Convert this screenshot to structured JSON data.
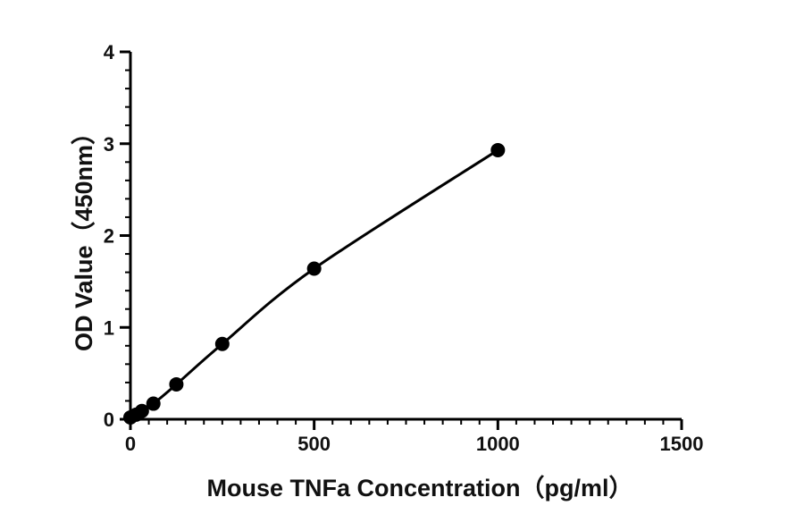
{
  "chart_data": {
    "type": "scatter",
    "xlabel": "Mouse TNFa  Concentration（pg/ml）",
    "ylabel": "OD Value（450nm）",
    "xlim": [
      0,
      1500
    ],
    "ylim": [
      0,
      4
    ],
    "x_ticks": [
      0,
      500,
      1000,
      1500
    ],
    "y_ticks": [
      0,
      1,
      2,
      3,
      4
    ],
    "x_minor_step": 50,
    "y_minor_step": 0.2,
    "grid": false,
    "legend": "none",
    "series": [
      {
        "x": [
          0,
          15.6,
          31.25,
          62.5,
          125,
          250,
          500,
          1000
        ],
        "y": [
          0.02,
          0.05,
          0.09,
          0.17,
          0.38,
          0.82,
          1.64,
          2.93
        ],
        "marker": "circle",
        "line": "fitted-curve",
        "color": "#000000"
      }
    ]
  }
}
